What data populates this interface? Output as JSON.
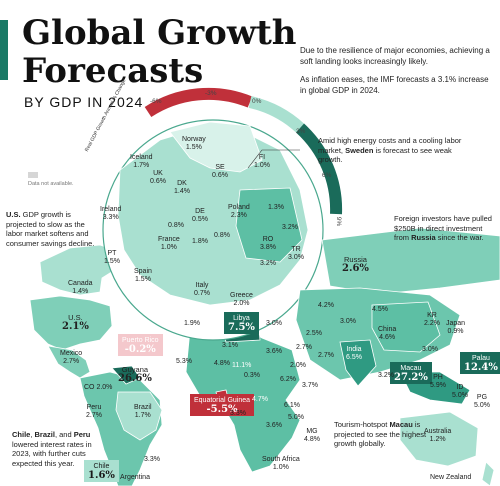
{
  "title": {
    "line1": "Global Growth",
    "line2": "Forecasts"
  },
  "subtitle": "BY GDP IN 2024",
  "intro": [
    "Due to the resilience of major economies, achieving a soft landing looks increasingly likely.",
    "As inflation eases, the IMF forecasts a 3.1% increase in global GDP in 2024."
  ],
  "legend": {
    "scale_title": "Real GDP Growth Annual % Change",
    "ticks": [
      "-6%",
      "-3%",
      "0%",
      "3%",
      "6%",
      "9%"
    ],
    "not_available": "Data not available.",
    "colors": {
      "negative": "#c0303a",
      "neutral": "#f2dcdc",
      "low": "#cfeee6",
      "mid": "#7fcfb8",
      "high": "#2f9a82",
      "top": "#1a6b5a",
      "na": "#d6d6d6"
    }
  },
  "notes": {
    "sweden": {
      "pre": "Amid high energy costs and a cooling labor market, ",
      "bold": "Sweden",
      "post": " is forecast to see weak growth."
    },
    "russia": {
      "pre": "Foreign investors have pulled $250B in direct investment from ",
      "bold": "Russia",
      "post": " since the war."
    },
    "us": {
      "bold": "U.S.",
      "post": " GDP growth is projected to slow as the labor market softens and consumer savings decline."
    },
    "latam": {
      "b1": "Chile",
      "s1": ", ",
      "b2": "Brazil",
      "s2": ", and ",
      "b3": "Peru",
      "post": " lowered interest rates in 2023, with further cuts expected this year."
    },
    "macau": {
      "pre": "Tourism-hotspot ",
      "bold": "Macau",
      "post": " is projected to see the highest growth globally."
    }
  },
  "countries": {
    "norway": {
      "name": "Norway",
      "value": "1.5%"
    },
    "iceland": {
      "name": "Iceland",
      "value": "1.7%"
    },
    "se": {
      "name": "SE",
      "value": "0.6%"
    },
    "fi": {
      "name": "FI",
      "value": "1.0%"
    },
    "uk": {
      "name": "UK",
      "value": "0.6%"
    },
    "dk": {
      "name": "DK",
      "value": "1.4%"
    },
    "ireland": {
      "name": "Ireland",
      "value": "3.3%"
    },
    "de": {
      "name": "DE",
      "value": "0.5%"
    },
    "poland": {
      "name": "Poland",
      "value": "2.3%"
    },
    "ee_lv": {
      "value": "1.3%"
    },
    "nl": {
      "value": "0.8%"
    },
    "cz": {
      "value": "0.8%"
    },
    "ua": {
      "value": "3.2%"
    },
    "france": {
      "name": "France",
      "value": "1.0%"
    },
    "ch": {
      "value": "1.8%"
    },
    "ro": {
      "name": "RO",
      "value": "3.8%"
    },
    "pt": {
      "name": "PT",
      "value": "1.5%"
    },
    "bg": {
      "value": "3.2%"
    },
    "tr": {
      "name": "TR",
      "value": "3.0%"
    },
    "spain": {
      "name": "Spain",
      "value": "1.5%"
    },
    "italy": {
      "name": "Italy",
      "value": "0.7%"
    },
    "greece": {
      "name": "Greece",
      "value": "2.0%"
    },
    "russia": {
      "name": "Russia",
      "value": "2.6%"
    },
    "canada": {
      "name": "Canada",
      "value": "1.4%"
    },
    "us": {
      "name": "U.S.",
      "value": "2.1%"
    },
    "mexico": {
      "name": "Mexico",
      "value": "2.7%"
    },
    "puertorico": {
      "name": "Puerto Rico",
      "value": "-0.2%"
    },
    "guyana": {
      "name": "Guyana",
      "value": "26.6%"
    },
    "co": {
      "name": "CO",
      "value": "2.0%"
    },
    "peru": {
      "name": "Peru",
      "value": "2.7%"
    },
    "brazil": {
      "name": "Brazil",
      "value": "1.7%"
    },
    "chile": {
      "name": "Chile",
      "value": "1.6%"
    },
    "argentina": {
      "name": "Argentina"
    },
    "libya": {
      "name": "Libya",
      "value": "7.5%"
    },
    "eqguinea": {
      "name": "Equatorial Guinea",
      "value": "-5.5%"
    },
    "southafrica": {
      "name": "South Africa",
      "value": "1.0%"
    },
    "mg": {
      "name": "MG",
      "value": "4.8%"
    },
    "kz": {
      "value": "4.2%"
    },
    "china": {
      "name": "China",
      "value": "4.6%"
    },
    "india": {
      "name": "India",
      "value": "6.5%"
    },
    "kr": {
      "name": "KR",
      "value": "2.2%"
    },
    "japan": {
      "name": "Japan",
      "value": "0.9%"
    },
    "macau": {
      "name": "Macau",
      "value": "27.2%"
    },
    "palau": {
      "name": "Palau",
      "value": "12.4%"
    },
    "ph": {
      "name": "PH",
      "value": "5.9%"
    },
    "id": {
      "name": "ID",
      "value": "5.0%"
    },
    "png": {
      "name": "PG",
      "value": "5.0%"
    },
    "australia": {
      "name": "Australia",
      "value": "1.2%"
    },
    "newzealand": {
      "name": "New Zealand"
    },
    "misc": [
      "1.9%",
      "3.1%",
      "4.8%",
      "11.1%",
      "3.0%",
      "3.6%",
      "6.2%",
      "4.7%",
      "3.3%",
      "3.6%",
      "5.0%",
      "6.1%",
      "3.7%",
      "2.7%",
      "2.0%",
      "2.7%",
      "2.5%",
      "3.0%",
      "3.0%",
      "4.5%",
      "5.3%",
      "0.3%",
      "3.2%",
      "3.3%"
    ]
  }
}
